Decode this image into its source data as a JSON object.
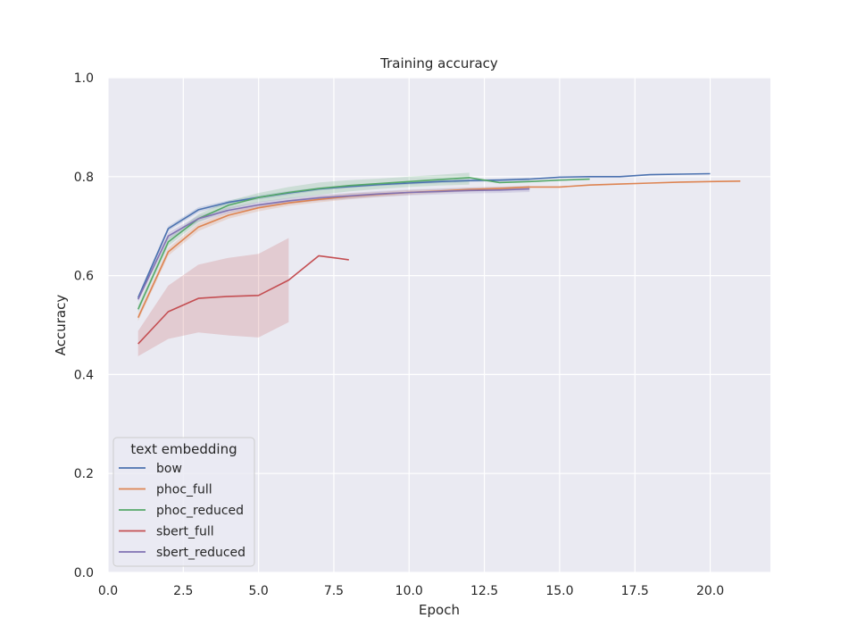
{
  "chart_data": {
    "type": "line",
    "title": "Training accuracy",
    "xlabel": "Epoch",
    "ylabel": "Accuracy",
    "xlim": [
      0,
      22
    ],
    "ylim": [
      0,
      1
    ],
    "xticks": [
      0,
      2.5,
      5,
      7.5,
      10,
      12.5,
      15,
      17.5,
      20
    ],
    "xtick_labels": [
      "0.0",
      "2.5",
      "5.0",
      "7.5",
      "10.0",
      "12.5",
      "15.0",
      "17.5",
      "20.0"
    ],
    "yticks": [
      0,
      0.2,
      0.4,
      0.6,
      0.8,
      1.0
    ],
    "ytick_labels": [
      "0.0",
      "0.2",
      "0.4",
      "0.6",
      "0.8",
      "1.0"
    ],
    "grid": true,
    "legend": {
      "title": "text embedding",
      "placement": "lower-left"
    },
    "series": [
      {
        "name": "bow",
        "color": "#4c72b0",
        "x": [
          1,
          2,
          3,
          4,
          5,
          6,
          7,
          8,
          9,
          10,
          11,
          12,
          13,
          14,
          15,
          16,
          17,
          18,
          19,
          20
        ],
        "y": [
          0.555,
          0.695,
          0.733,
          0.748,
          0.758,
          0.767,
          0.775,
          0.78,
          0.784,
          0.787,
          0.79,
          0.792,
          0.793,
          0.795,
          0.799,
          0.8,
          0.8,
          0.804,
          0.805,
          0.806
        ],
        "band_lower": [
          0.55,
          0.69,
          0.728,
          0.744,
          0.754,
          0.763,
          0.772,
          0.777,
          0.781,
          0.784,
          0.787,
          0.789,
          0.79,
          0.792
        ],
        "band_upper": [
          0.56,
          0.7,
          0.738,
          0.752,
          0.762,
          0.771,
          0.778,
          0.783,
          0.787,
          0.79,
          0.793,
          0.795,
          0.796,
          0.798
        ]
      },
      {
        "name": "phoc_full",
        "color": "#dd8452",
        "x": [
          1,
          2,
          3,
          4,
          5,
          6,
          7,
          8,
          9,
          10,
          11,
          12,
          13,
          14,
          15,
          16,
          17,
          18,
          19,
          20,
          21
        ],
        "y": [
          0.515,
          0.648,
          0.698,
          0.722,
          0.737,
          0.747,
          0.754,
          0.76,
          0.764,
          0.768,
          0.771,
          0.774,
          0.776,
          0.779,
          0.779,
          0.783,
          0.785,
          0.787,
          0.789,
          0.79,
          0.791
        ],
        "band_lower": [
          0.508,
          0.64,
          0.69,
          0.715,
          0.73,
          0.741,
          0.748,
          0.754,
          0.759,
          0.763,
          0.767,
          0.77,
          0.772,
          0.776
        ],
        "band_upper": [
          0.522,
          0.656,
          0.706,
          0.729,
          0.744,
          0.753,
          0.76,
          0.766,
          0.769,
          0.773,
          0.775,
          0.778,
          0.78,
          0.782
        ]
      },
      {
        "name": "phoc_reduced",
        "color": "#55a868",
        "x": [
          1,
          2,
          3,
          4,
          5,
          6,
          7,
          8,
          9,
          10,
          11,
          12,
          13,
          14,
          15,
          16
        ],
        "y": [
          0.532,
          0.668,
          0.715,
          0.742,
          0.758,
          0.768,
          0.776,
          0.782,
          0.786,
          0.79,
          0.794,
          0.798,
          0.788,
          0.79,
          0.793,
          0.795
        ],
        "band_lower": [
          0.525,
          0.66,
          0.707,
          0.734,
          0.748,
          0.756,
          0.763,
          0.77,
          0.775,
          0.779,
          0.782,
          0.784
        ],
        "band_upper": [
          0.54,
          0.676,
          0.724,
          0.751,
          0.767,
          0.779,
          0.788,
          0.793,
          0.796,
          0.8,
          0.804,
          0.808
        ]
      },
      {
        "name": "sbert_full",
        "color": "#c44e52",
        "x": [
          1,
          2,
          3,
          4,
          5,
          6,
          7,
          8
        ],
        "y": [
          0.462,
          0.527,
          0.554,
          0.558,
          0.56,
          0.591,
          0.64,
          0.632
        ],
        "band_lower": [
          0.437,
          0.472,
          0.485,
          0.479,
          0.475,
          0.506
        ],
        "band_upper": [
          0.488,
          0.58,
          0.622,
          0.636,
          0.644,
          0.676
        ]
      },
      {
        "name": "sbert_reduced",
        "color": "#8172b3",
        "x": [
          1,
          2,
          3,
          4,
          5,
          6,
          7,
          8,
          9,
          10,
          11,
          12,
          13,
          14
        ],
        "y": [
          0.552,
          0.68,
          0.715,
          0.732,
          0.743,
          0.751,
          0.757,
          0.761,
          0.765,
          0.768,
          0.77,
          0.772,
          0.773,
          0.775
        ],
        "band_lower": [
          0.546,
          0.673,
          0.709,
          0.726,
          0.737,
          0.745,
          0.751,
          0.755,
          0.759,
          0.762,
          0.764,
          0.766,
          0.767,
          0.769
        ],
        "band_upper": [
          0.558,
          0.687,
          0.721,
          0.738,
          0.749,
          0.757,
          0.763,
          0.767,
          0.771,
          0.774,
          0.776,
          0.778,
          0.779,
          0.781
        ]
      }
    ]
  }
}
